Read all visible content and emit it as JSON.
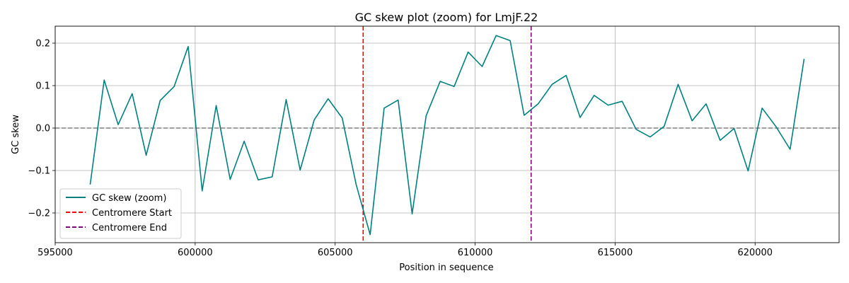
{
  "chart_data": {
    "type": "line",
    "title": "GC skew plot (zoom) for LmjF.22",
    "xlabel": "Position in sequence",
    "ylabel": "GC skew",
    "xlim": [
      595000,
      623000
    ],
    "ylim": [
      -0.27,
      0.24
    ],
    "grid": true,
    "legend_position": "lower-left",
    "x_ticks": [
      595000,
      600000,
      605000,
      610000,
      615000,
      620000
    ],
    "y_ticks": [
      -0.2,
      -0.1,
      0.0,
      0.1,
      0.2
    ],
    "series": [
      {
        "name": "GC skew (zoom)",
        "color": "#008080",
        "x": [
          596250,
          596750,
          597250,
          597750,
          598250,
          598750,
          599250,
          599750,
          600250,
          600750,
          601250,
          601750,
          602250,
          602750,
          603250,
          603750,
          604250,
          604750,
          605250,
          605750,
          606250,
          606750,
          607250,
          607750,
          608250,
          608750,
          609250,
          609750,
          610250,
          610750,
          611250,
          611750,
          612250,
          612750,
          613250,
          613750,
          614250,
          614750,
          615250,
          615750,
          616250,
          616750,
          617250,
          617750,
          618250,
          618750,
          619250,
          619750,
          620250,
          620750,
          621250,
          621750
        ],
        "values": [
          -0.133,
          0.113,
          0.008,
          0.081,
          -0.064,
          0.065,
          0.098,
          0.192,
          -0.148,
          0.053,
          -0.121,
          -0.031,
          -0.122,
          -0.115,
          0.067,
          -0.099,
          0.019,
          0.069,
          0.024,
          -0.133,
          -0.251,
          0.047,
          0.066,
          -0.202,
          0.029,
          0.11,
          0.098,
          0.179,
          0.145,
          0.218,
          0.206,
          0.03,
          0.057,
          0.103,
          0.124,
          0.025,
          0.077,
          0.054,
          0.063,
          -0.003,
          -0.021,
          0.004,
          0.103,
          0.017,
          0.057,
          -0.029,
          -0.001,
          -0.101,
          0.047,
          0.003,
          -0.05,
          0.163
        ]
      }
    ],
    "reference_lines": [
      {
        "name": "Centromere Start",
        "axis": "x",
        "value": 606000,
        "color": "#ff0000",
        "style": "dashed"
      },
      {
        "name": "Centromere End",
        "axis": "x",
        "value": 612000,
        "color": "#800080",
        "style": "dashed"
      },
      {
        "name": "",
        "axis": "y",
        "value": 0.0,
        "color": "#808080",
        "style": "dashed"
      }
    ]
  }
}
